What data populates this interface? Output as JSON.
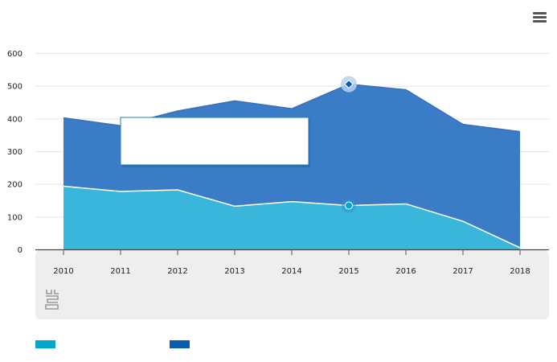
{
  "menu_icon": "hamburger-menu-icon",
  "logo_icon": "source-logo-icon",
  "colors": {
    "series_lower": "#3bb6db",
    "series_upper": "#3a7cc6",
    "lower_legend": "#06a6cc",
    "upper_legend": "#0b5bb3",
    "footer_band": "#eeeeee",
    "grid": "#e3e3e3"
  },
  "tooltip": {
    "title": "",
    "body": ""
  },
  "chart_data": {
    "type": "area",
    "stacking": "overlap",
    "x": [
      "2010",
      "2011",
      "2012",
      "2013",
      "2014",
      "2015",
      "2016",
      "2017",
      "2018"
    ],
    "y_ticks": [
      "0",
      "100",
      "200",
      "300",
      "400",
      "500",
      "600"
    ],
    "ylim": [
      0,
      600
    ],
    "grid": true,
    "legend_position": "bottom-left",
    "highlighted_index": 5,
    "series": [
      {
        "name": "",
        "color": "#3a7cc6",
        "values": [
          402,
          378,
          423,
          454,
          430,
          505,
          488,
          382,
          360
        ]
      },
      {
        "name": "",
        "color": "#3bb6db",
        "values": [
          193,
          177,
          182,
          132,
          146,
          134,
          139,
          86,
          5
        ]
      }
    ]
  }
}
